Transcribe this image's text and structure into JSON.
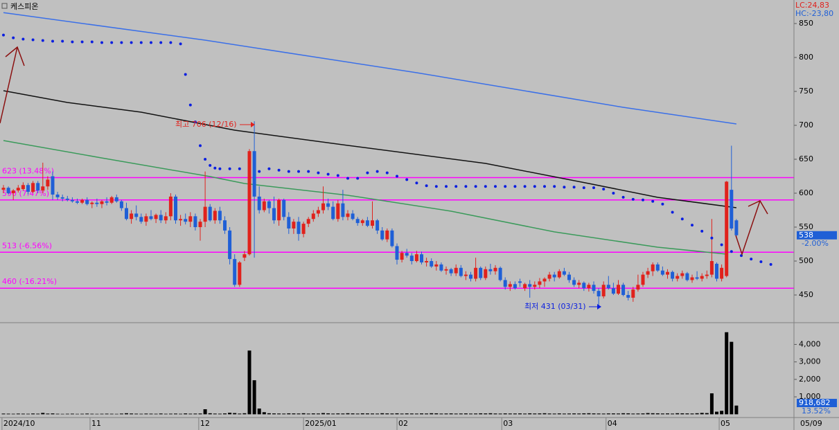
{
  "chart_data": {
    "type": "candlestick",
    "title": "케스피온",
    "lc_label": "LC:24,83",
    "hc_label": "HC:-23,80",
    "xlim": [
      -0.7042,
      160.704
    ],
    "xticks": [
      {
        "value": -0.3,
        "label": "2024/10"
      },
      {
        "value": 17.6,
        "label": "11"
      },
      {
        "value": 39.7,
        "label": "12"
      },
      {
        "value": 61,
        "label": "2025/01"
      },
      {
        "value": 80,
        "label": "02"
      },
      {
        "value": 101.3,
        "label": "03"
      },
      {
        "value": 122.5,
        "label": "04"
      },
      {
        "value": 145.5,
        "label": "05"
      }
    ],
    "x_last_label": "05/09",
    "ylim": [
      409.2,
      884.7
    ],
    "yticks": [
      450,
      500,
      550,
      600,
      650,
      700,
      750,
      800,
      850
    ],
    "grid": false,
    "up_color": "#e0221c",
    "down_color": "#1f5fd6",
    "ohlc": [
      [
        605,
        612,
        600,
        608
      ],
      [
        608,
        610,
        598,
        600
      ],
      [
        600,
        606,
        590,
        604
      ],
      [
        604,
        612,
        601,
        608
      ],
      [
        606,
        616,
        604,
        612
      ],
      [
        612,
        615,
        598,
        602
      ],
      [
        602,
        618,
        600,
        615
      ],
      [
        615,
        618,
        600,
        604
      ],
      [
        604,
        645,
        600,
        610
      ],
      [
        610,
        625,
        605,
        620
      ],
      [
        625,
        632,
        590,
        598
      ],
      [
        598,
        602,
        590,
        594
      ],
      [
        594,
        598,
        588,
        592
      ],
      [
        592,
        596,
        588,
        590
      ],
      [
        590,
        594,
        586,
        588
      ],
      [
        588,
        592,
        584,
        586
      ],
      [
        586,
        592,
        584,
        590
      ],
      [
        590,
        594,
        582,
        584
      ],
      [
        584,
        588,
        578,
        586
      ],
      [
        586,
        592,
        580,
        584
      ],
      [
        584,
        590,
        578,
        588
      ],
      [
        588,
        594,
        582,
        586
      ],
      [
        586,
        596,
        584,
        594
      ],
      [
        594,
        598,
        586,
        588
      ],
      [
        588,
        590,
        574,
        578
      ],
      [
        578,
        586,
        560,
        562
      ],
      [
        562,
        575,
        555,
        570
      ],
      [
        570,
        582,
        560,
        565
      ],
      [
        565,
        570,
        555,
        558
      ],
      [
        558,
        570,
        552,
        566
      ],
      [
        566,
        575,
        560,
        562
      ],
      [
        562,
        570,
        556,
        568
      ],
      [
        568,
        575,
        556,
        560
      ],
      [
        560,
        572,
        555,
        566
      ],
      [
        566,
        600,
        560,
        595
      ],
      [
        595,
        598,
        555,
        560
      ],
      [
        560,
        568,
        552,
        562
      ],
      [
        562,
        570,
        554,
        558
      ],
      [
        558,
        572,
        550,
        566
      ],
      [
        566,
        570,
        545,
        550
      ],
      [
        550,
        562,
        530,
        558
      ],
      [
        558,
        632,
        550,
        580
      ],
      [
        580,
        584,
        558,
        560
      ],
      [
        560,
        578,
        555,
        574
      ],
      [
        574,
        580,
        555,
        560
      ],
      [
        560,
        566,
        540,
        545
      ],
      [
        545,
        550,
        495,
        503
      ],
      [
        503,
        510,
        462,
        465
      ],
      [
        465,
        500,
        462,
        498
      ],
      [
        505,
        515,
        500,
        510
      ],
      [
        510,
        665,
        508,
        662
      ],
      [
        662,
        706,
        505,
        595
      ],
      [
        595,
        610,
        570,
        575
      ],
      [
        575,
        592,
        572,
        588
      ],
      [
        588,
        590,
        570,
        578
      ],
      [
        578,
        595,
        555,
        560
      ],
      [
        560,
        592,
        552,
        590
      ],
      [
        590,
        592,
        560,
        565
      ],
      [
        565,
        572,
        540,
        548
      ],
      [
        548,
        562,
        540,
        558
      ],
      [
        558,
        565,
        530,
        540
      ],
      [
        540,
        558,
        535,
        555
      ],
      [
        555,
        565,
        550,
        562
      ],
      [
        562,
        575,
        558,
        570
      ],
      [
        570,
        580,
        565,
        575
      ],
      [
        575,
        610,
        570,
        585
      ],
      [
        585,
        592,
        575,
        580
      ],
      [
        580,
        588,
        560,
        562
      ],
      [
        562,
        590,
        558,
        585
      ],
      [
        585,
        605,
        560,
        565
      ],
      [
        565,
        575,
        560,
        570
      ],
      [
        570,
        575,
        560,
        562
      ],
      [
        562,
        565,
        552,
        556
      ],
      [
        556,
        562,
        552,
        560
      ],
      [
        560,
        565,
        550,
        552
      ],
      [
        552,
        588,
        548,
        560
      ],
      [
        560,
        562,
        540,
        545
      ],
      [
        545,
        550,
        530,
        532
      ],
      [
        532,
        548,
        528,
        545
      ],
      [
        545,
        548,
        520,
        522
      ],
      [
        522,
        526,
        495,
        502
      ],
      [
        502,
        515,
        498,
        512
      ],
      [
        512,
        518,
        505,
        508
      ],
      [
        508,
        512,
        495,
        500
      ],
      [
        500,
        515,
        498,
        510
      ],
      [
        510,
        514,
        495,
        498
      ],
      [
        498,
        505,
        492,
        500
      ],
      [
        500,
        504,
        490,
        492
      ],
      [
        492,
        500,
        486,
        495
      ],
      [
        495,
        498,
        484,
        486
      ],
      [
        486,
        492,
        480,
        488
      ],
      [
        488,
        490,
        478,
        482
      ],
      [
        482,
        495,
        478,
        490
      ],
      [
        490,
        494,
        476,
        478
      ],
      [
        478,
        485,
        472,
        480
      ],
      [
        480,
        484,
        470,
        474
      ],
      [
        474,
        505,
        470,
        490
      ],
      [
        490,
        492,
        472,
        475
      ],
      [
        475,
        492,
        472,
        488
      ],
      [
        488,
        496,
        480,
        485
      ],
      [
        485,
        494,
        480,
        490
      ],
      [
        490,
        492,
        470,
        472
      ],
      [
        472,
        476,
        458,
        462
      ],
      [
        462,
        470,
        456,
        466
      ],
      [
        466,
        470,
        458,
        460
      ],
      [
        470,
        474,
        462,
        468
      ],
      [
        460,
        468,
        456,
        466
      ],
      [
        466,
        472,
        446,
        462
      ],
      [
        462,
        470,
        458,
        465
      ],
      [
        465,
        475,
        460,
        470
      ],
      [
        470,
        476,
        462,
        474
      ],
      [
        474,
        484,
        470,
        480
      ],
      [
        480,
        484,
        470,
        476
      ],
      [
        476,
        488,
        474,
        485
      ],
      [
        485,
        490,
        478,
        480
      ],
      [
        480,
        484,
        468,
        472
      ],
      [
        472,
        476,
        462,
        465
      ],
      [
        465,
        472,
        460,
        468
      ],
      [
        468,
        470,
        456,
        460
      ],
      [
        460,
        468,
        455,
        465
      ],
      [
        465,
        470,
        452,
        456
      ],
      [
        456,
        460,
        431,
        448
      ],
      [
        448,
        470,
        445,
        465
      ],
      [
        465,
        478,
        458,
        460
      ],
      [
        460,
        468,
        450,
        452
      ],
      [
        452,
        472,
        450,
        465
      ],
      [
        465,
        468,
        448,
        450
      ],
      [
        450,
        456,
        442,
        446
      ],
      [
        446,
        462,
        440,
        458
      ],
      [
        458,
        480,
        455,
        465
      ],
      [
        465,
        484,
        462,
        480
      ],
      [
        480,
        490,
        475,
        485
      ],
      [
        485,
        498,
        478,
        495
      ],
      [
        495,
        498,
        484,
        486
      ],
      [
        486,
        492,
        478,
        480
      ],
      [
        480,
        488,
        474,
        484
      ],
      [
        484,
        486,
        470,
        474
      ],
      [
        474,
        482,
        470,
        478
      ],
      [
        478,
        486,
        474,
        482
      ],
      [
        482,
        484,
        470,
        472
      ],
      [
        472,
        480,
        468,
        476
      ],
      [
        476,
        485,
        472,
        474
      ],
      [
        474,
        482,
        470,
        478
      ],
      [
        478,
        486,
        474,
        480
      ],
      [
        480,
        562,
        476,
        500
      ],
      [
        496,
        498,
        470,
        474
      ],
      [
        474,
        495,
        470,
        490
      ],
      [
        478,
        618,
        476,
        617
      ],
      [
        605,
        670,
        545,
        548
      ],
      [
        560,
        562,
        535,
        538
      ]
    ],
    "lines": [
      {
        "color": "#3a6fe8",
        "x": [
          0,
          41,
          84,
          126,
          149
        ],
        "values": [
          866,
          825.5,
          777.6,
          726.5,
          702
        ]
      },
      {
        "color": "#111111",
        "x": [
          0,
          13,
          28,
          47,
          70,
          98,
          119,
          133,
          149
        ],
        "values": [
          751,
          733.7,
          719.4,
          692.9,
          670.4,
          643.9,
          614.3,
          593.9,
          578.6
        ]
      },
      {
        "color": "#3a9a5a",
        "x": [
          0,
          20,
          42,
          49,
          70,
          91,
          112,
          133,
          147
        ],
        "values": [
          677.6,
          652,
          624.5,
          614.3,
          597,
          573.5,
          543,
          520.4,
          510.2
        ]
      }
    ],
    "sar": {
      "color": "#0a1ee0",
      "x": [
        0,
        2,
        4,
        6,
        8,
        10,
        12,
        14,
        16,
        18,
        20,
        22,
        24,
        26,
        28,
        30,
        32,
        34,
        36,
        37,
        38,
        39,
        40,
        41,
        42,
        43,
        44,
        46,
        48,
        52,
        54,
        56,
        58,
        60,
        62,
        64,
        66,
        68,
        70,
        72,
        74,
        76,
        78,
        80,
        82,
        84,
        86,
        88,
        90,
        92,
        94,
        96,
        98,
        100,
        102,
        104,
        106,
        108,
        110,
        112,
        114,
        116,
        118,
        120,
        122,
        124,
        126,
        128,
        130,
        132,
        134,
        136,
        138,
        140,
        142,
        144,
        146,
        148,
        150,
        152,
        154,
        156
      ],
      "values": [
        833,
        829,
        827,
        826,
        825,
        824,
        824,
        823,
        823,
        823,
        822,
        822,
        822,
        822,
        822,
        822,
        822,
        822,
        820,
        775,
        730,
        705,
        670,
        650,
        641,
        637,
        636,
        636,
        636,
        632,
        636,
        634,
        632,
        632,
        632,
        630,
        628,
        626,
        622,
        622,
        630,
        632,
        630,
        625,
        620,
        615,
        611,
        610,
        610,
        610,
        610,
        610,
        610,
        610,
        610,
        610,
        610,
        610,
        610,
        610,
        609,
        609,
        608,
        608,
        606,
        600,
        594,
        591,
        590,
        588,
        584,
        572,
        562,
        553,
        544,
        534,
        524,
        514,
        508,
        503,
        499,
        495
      ]
    },
    "hlines": [
      {
        "value": 623,
        "label": "623 (13.48%)"
      },
      {
        "value": 590,
        "label": "590 (7.47%)"
      },
      {
        "value": 513,
        "label": "513 (-6.56%)"
      },
      {
        "value": 460,
        "label": "460 (-16.21%)"
      }
    ],
    "hline_color": "#ff00ff",
    "high_annotation": "최고 706 (12/16)",
    "low_annotation": "최저 431 (03/31)",
    "last_price": 538,
    "last_change": "-2.00%",
    "volume": {
      "color": "#000000",
      "values": [
        40,
        35,
        30,
        40,
        35,
        30,
        45,
        35,
        80,
        40,
        50,
        30,
        25,
        30,
        35,
        25,
        30,
        40,
        30,
        25,
        30,
        35,
        30,
        25,
        40,
        60,
        45,
        35,
        30,
        40,
        35,
        30,
        45,
        30,
        35,
        40,
        30,
        50,
        35,
        40,
        45,
        290,
        60,
        40,
        35,
        50,
        90,
        70,
        40,
        60,
        3650,
        1950,
        330,
        120,
        60,
        50,
        45,
        40,
        55,
        50,
        45,
        60,
        40,
        50,
        45,
        70,
        55,
        40,
        50,
        45,
        60,
        50,
        40,
        55,
        50,
        45,
        40,
        60,
        50,
        45,
        55,
        40,
        50,
        45,
        40,
        50,
        45,
        60,
        55,
        40,
        45,
        50,
        40,
        45,
        50,
        40,
        45,
        55,
        50,
        60,
        45,
        40,
        50,
        45,
        45,
        50,
        40,
        55,
        45,
        50,
        60,
        45,
        40,
        50,
        40,
        45,
        50,
        45,
        55,
        60,
        50,
        45,
        40,
        50,
        50,
        45,
        60,
        55,
        40,
        45,
        50,
        70,
        60,
        55,
        45,
        50,
        40,
        60,
        55,
        50,
        45,
        60,
        80,
        70,
        1200,
        150,
        200,
        4700,
        4150,
        500
      ],
      "ylim": [
        -185,
        5246
      ],
      "yticks": [
        {
          "value": 1000,
          "label": "1,000"
        },
        {
          "value": 2000,
          "label": "2,000"
        },
        {
          "value": 3000,
          "label": "3,000"
        },
        {
          "value": 4000,
          "label": "4,000"
        }
      ],
      "last_label": "918,682",
      "last_change": "13.52%"
    }
  }
}
